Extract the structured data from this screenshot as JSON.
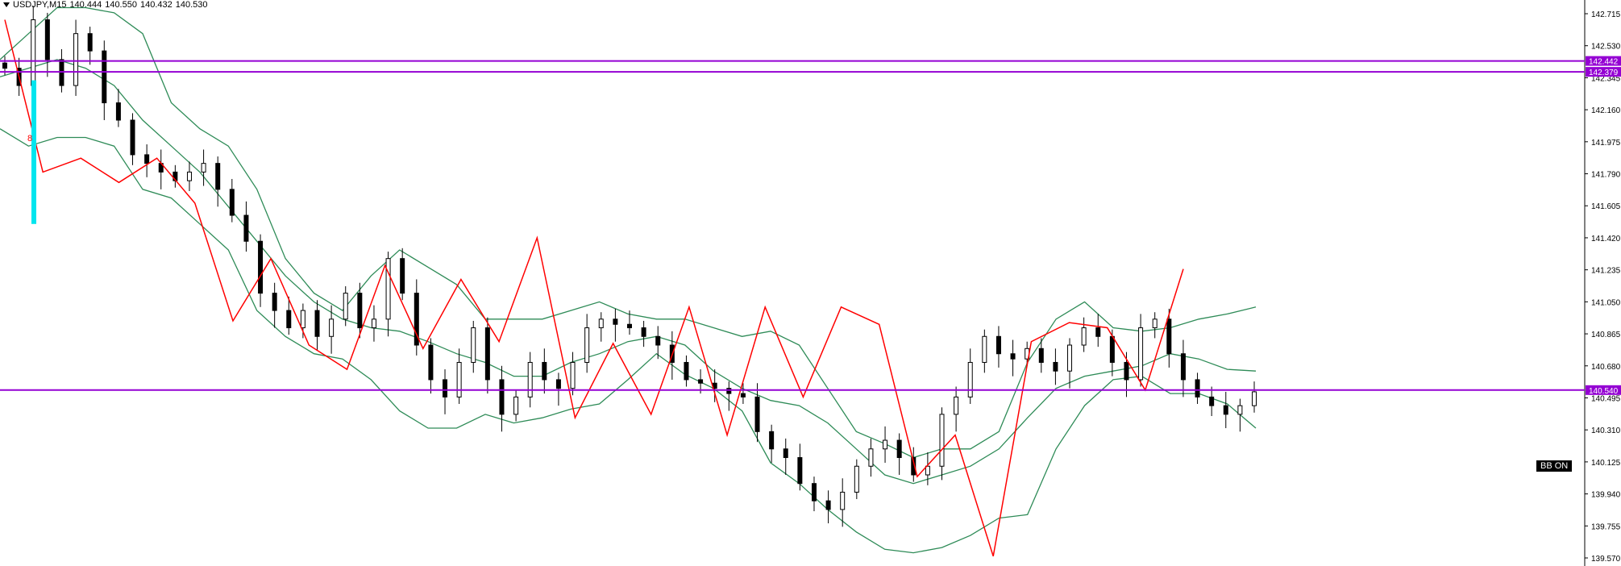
{
  "header": {
    "symbol": "USDJPY,M15",
    "open": "140.444",
    "high": "140.550",
    "low": "140.432",
    "close": "140.530"
  },
  "indicator_label": "BB ON",
  "marker_text": "8",
  "colors": {
    "candle": "#000000",
    "zigzag": "#ff0000",
    "bands": "#2e8b57",
    "level": "#9400d3",
    "marker": "#00e5ee",
    "axis_text": "#000000"
  },
  "chart_data": {
    "type": "candlestick",
    "title": "",
    "ylim": [
      139.57,
      142.715
    ],
    "y_ticks": [
      "142.715",
      "142.530",
      "142.345",
      "142.160",
      "141.975",
      "141.790",
      "141.605",
      "141.420",
      "141.235",
      "141.050",
      "140.865",
      "140.680",
      "140.495",
      "140.310",
      "140.125",
      "139.940",
      "139.755",
      "139.570"
    ],
    "levels": [
      {
        "label": "142.442",
        "value": 142.442
      },
      {
        "label": "142.379",
        "value": 142.379
      },
      {
        "label": "140.540",
        "value": 140.54
      }
    ],
    "zigzag": [
      142.68,
      141.8,
      141.88,
      141.74,
      141.88,
      141.62,
      140.94,
      141.3,
      140.8,
      140.66,
      141.26,
      140.78,
      141.18,
      140.82,
      141.42,
      140.38,
      140.81,
      140.4,
      141.02,
      140.28,
      141.02,
      140.5,
      141.02,
      140.92,
      140.04,
      140.28,
      139.58,
      140.82,
      140.93,
      140.9,
      140.54,
      141.24
    ],
    "candles_close": [
      142.4,
      142.3,
      142.68,
      142.45,
      142.3,
      142.6,
      142.5,
      142.2,
      142.1,
      141.9,
      141.85,
      141.8,
      141.75,
      141.8,
      141.85,
      141.7,
      141.55,
      141.4,
      141.1,
      141.0,
      140.9,
      141.0,
      140.85,
      140.95,
      141.1,
      140.9,
      140.95,
      141.3,
      141.1,
      140.8,
      140.6,
      140.5,
      140.7,
      140.9,
      140.6,
      140.4,
      140.5,
      140.7,
      140.6,
      140.55,
      140.7,
      140.9,
      140.95,
      140.92,
      140.9,
      140.85,
      140.8,
      140.7,
      140.6,
      140.58,
      140.55,
      140.52,
      140.5,
      140.3,
      140.2,
      140.15,
      140.0,
      139.9,
      139.85,
      139.95,
      140.1,
      140.2,
      140.25,
      140.15,
      140.05,
      140.1,
      140.4,
      140.5,
      140.7,
      140.85,
      140.75,
      140.72,
      140.78,
      140.7,
      140.65,
      140.8,
      140.9,
      140.85,
      140.7,
      140.6,
      140.9,
      140.95,
      140.75,
      140.6,
      140.5,
      140.45,
      140.4,
      140.45,
      140.53
    ],
    "bb_upper": [
      142.45,
      142.6,
      142.75,
      142.75,
      142.72,
      142.6,
      142.2,
      142.05,
      141.95,
      141.7,
      141.3,
      141.1,
      141.0,
      141.2,
      141.35,
      141.25,
      141.15,
      140.95,
      140.95,
      140.95,
      141.0,
      141.05,
      140.98,
      140.95,
      140.95,
      140.9,
      140.85,
      140.88,
      140.8,
      140.55,
      140.3,
      140.23,
      140.15,
      140.2,
      140.2,
      140.3,
      140.7,
      140.95,
      141.05,
      140.9,
      140.88,
      140.9,
      140.95,
      140.98,
      141.02
    ],
    "bb_middle": [
      142.35,
      142.4,
      142.45,
      142.4,
      142.3,
      142.1,
      141.95,
      141.8,
      141.6,
      141.4,
      141.2,
      141.05,
      140.95,
      140.9,
      140.88,
      140.82,
      140.75,
      140.7,
      140.62,
      140.62,
      140.7,
      140.75,
      140.82,
      140.85,
      140.8,
      140.65,
      140.55,
      140.48,
      140.45,
      140.35,
      140.2,
      140.05,
      140.0,
      140.05,
      140.1,
      140.2,
      140.38,
      140.55,
      140.62,
      140.65,
      140.68,
      140.75,
      140.72,
      140.66,
      140.65
    ],
    "bb_lower": [
      142.05,
      141.95,
      142.0,
      142.0,
      141.95,
      141.7,
      141.65,
      141.5,
      141.35,
      141.0,
      140.85,
      140.75,
      140.72,
      140.6,
      140.42,
      140.32,
      140.32,
      140.4,
      140.35,
      140.38,
      140.43,
      140.46,
      140.6,
      140.75,
      140.63,
      140.55,
      140.42,
      140.12,
      140.0,
      139.85,
      139.72,
      139.62,
      139.6,
      139.63,
      139.7,
      139.8,
      139.82,
      140.2,
      140.45,
      140.6,
      140.62,
      140.52,
      140.52,
      140.46,
      140.32
    ]
  }
}
